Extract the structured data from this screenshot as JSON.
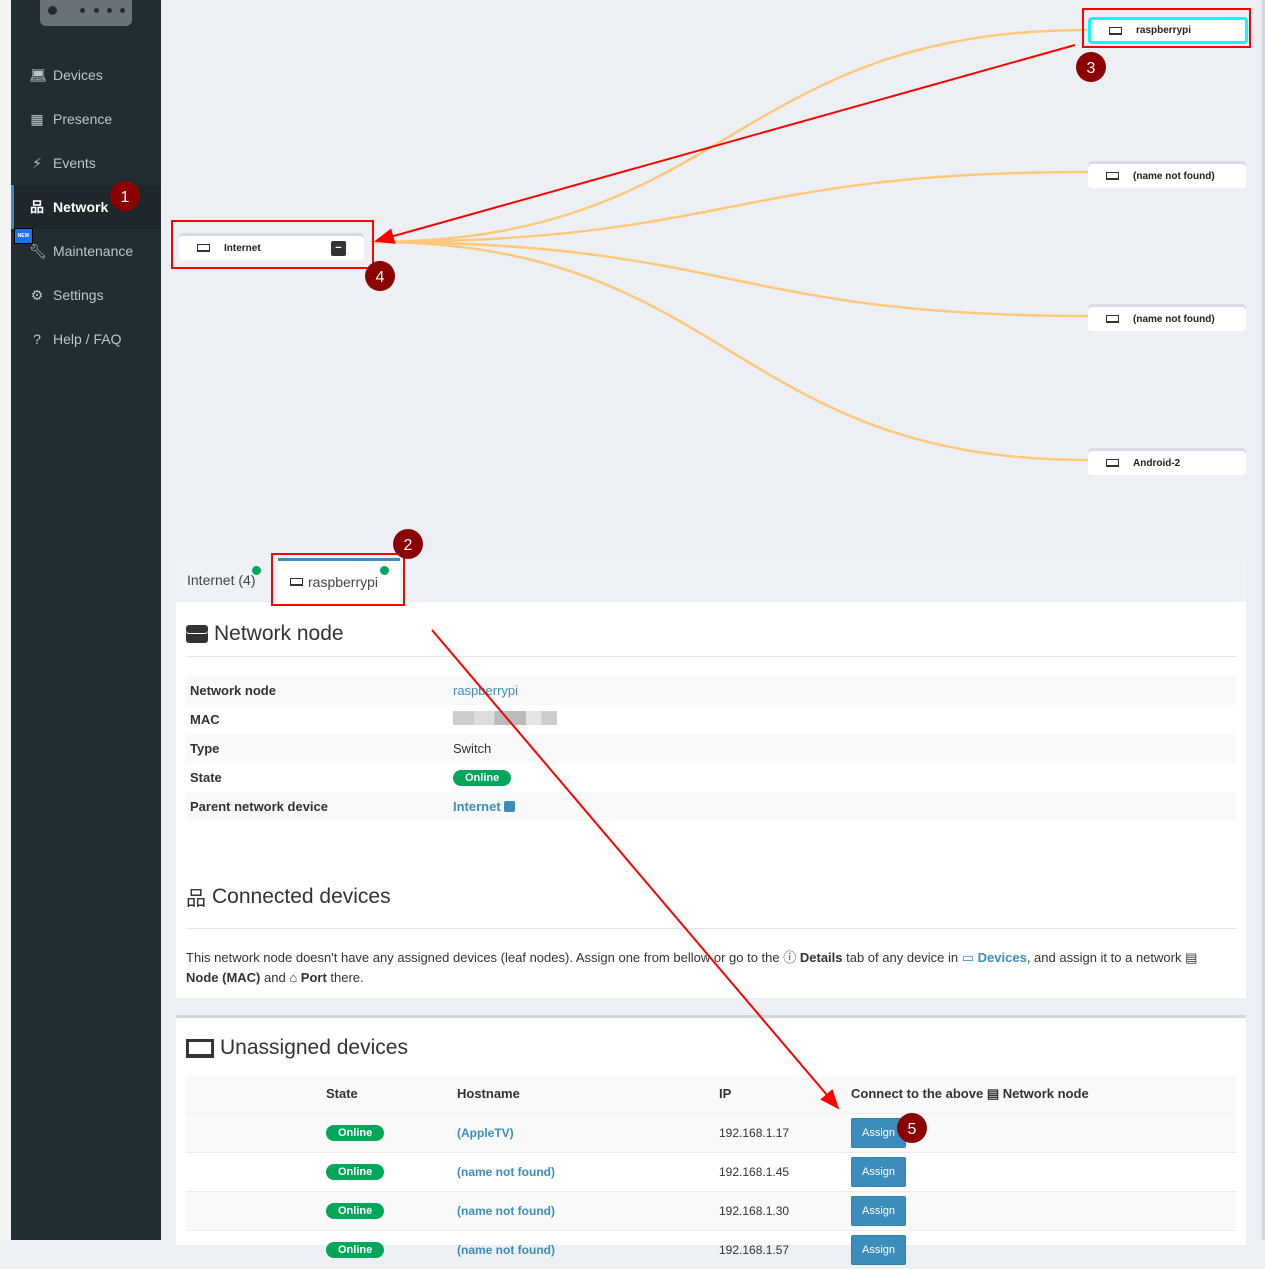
{
  "sidebar": {
    "items": [
      {
        "label": "Devices",
        "icon": "laptop-icon"
      },
      {
        "label": "Presence",
        "icon": "calendar-icon"
      },
      {
        "label": "Events",
        "icon": "bolt-icon"
      },
      {
        "label": "Network",
        "icon": "sitemap-icon",
        "active": true
      },
      {
        "label": "Maintenance",
        "icon": "wrench-icon",
        "badge": "NEW"
      },
      {
        "label": "Settings",
        "icon": "gear-icon"
      },
      {
        "label": "Help / FAQ",
        "icon": "question-icon"
      }
    ]
  },
  "graph": {
    "root": "Internet",
    "root_toggle": "−",
    "children": [
      "raspberrypi",
      "(name not found)",
      "(name not found)",
      "Android-2"
    ],
    "link_color": "#ffc87a"
  },
  "tabs": [
    {
      "label": "Internet (4)"
    },
    {
      "label": "raspberrypi",
      "active": true
    }
  ],
  "node": {
    "title": "Network node",
    "rows": [
      {
        "label": "Network node",
        "value": "raspberrypi"
      },
      {
        "label": "MAC",
        "value": ""
      },
      {
        "label": "Type",
        "value": "Switch"
      },
      {
        "label": "State",
        "value": "Online"
      },
      {
        "label": "Parent network device",
        "value": "Internet"
      }
    ]
  },
  "connected": {
    "title": "Connected devices",
    "t1": "This network node doesn't have any assigned devices (leaf nodes). Assign one from bellow or go to the ",
    "details": "Details",
    "t2": " tab of any device in ",
    "devices": "Devices",
    "t3": ", and assign it to a network ",
    "node_mac": "Node (MAC)",
    "t4": " and ",
    "port": "Port",
    "t5": " there."
  },
  "unassigned": {
    "title": "Unassigned devices",
    "headers": [
      "State",
      "Hostname",
      "IP",
      "Connect to the above",
      "Network node"
    ],
    "rows": [
      {
        "state": "Online",
        "hostname": "(AppleTV)",
        "ip": "192.168.1.17",
        "action": "Assign"
      },
      {
        "state": "Online",
        "hostname": "(name not found)",
        "ip": "192.168.1.45",
        "action": "Assign"
      },
      {
        "state": "Online",
        "hostname": "(name not found)",
        "ip": "192.168.1.30",
        "action": "Assign"
      },
      {
        "state": "Online",
        "hostname": "(name not found)",
        "ip": "192.168.1.57",
        "action": "Assign"
      }
    ]
  },
  "annotations": [
    "1",
    "2",
    "3",
    "4",
    "5"
  ],
  "colors": {
    "sidebar": "#222d32",
    "accent": "#3c8dbc",
    "online": "#00a65a",
    "annotation": "#ff0000"
  }
}
